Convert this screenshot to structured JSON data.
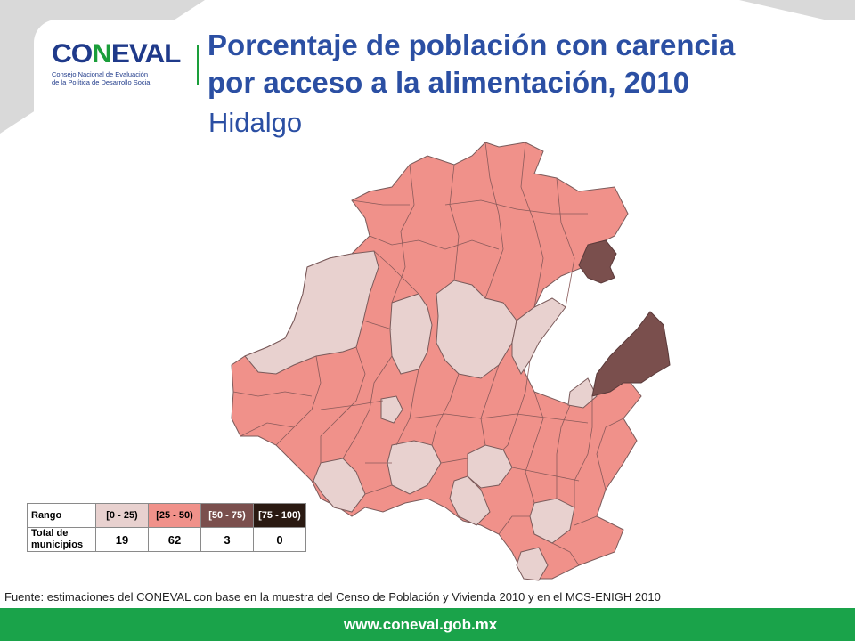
{
  "header": {
    "logo_text_a": "CO",
    "logo_text_b": "N",
    "logo_text_c": "EVAL",
    "logo_sub_1": "Consejo Nacional de Evaluación",
    "logo_sub_2": "de la Política de Desarrollo Social",
    "title_line1": "Porcentaje de población con carencia",
    "title_line2": "por acceso a la alimentación, 2010",
    "subtitle": "Hidalgo"
  },
  "colors": {
    "range_0_25": "#e8d1cf",
    "range_25_50": "#f0918a",
    "range_50_75": "#7a4f4d",
    "range_75_100": "#2a1a12",
    "border": "#7a5a5a",
    "brand_blue": "#2b4fa3",
    "brand_green": "#1aa34a"
  },
  "legend": {
    "row1_label": "Rango",
    "row2_label": "Total de municipios",
    "ranges": [
      "[0 - 25)",
      "[25 - 50)",
      "[50 - 75)",
      "[75 - 100)"
    ],
    "counts": [
      "19",
      "62",
      "3",
      "0"
    ]
  },
  "source": "Fuente: estimaciones del CONEVAL con base en la muestra del Censo de Población y Vivienda 2010 y en el MCS-ENIGH 2010",
  "footer": {
    "url": "www.coneval.gob.mx"
  }
}
